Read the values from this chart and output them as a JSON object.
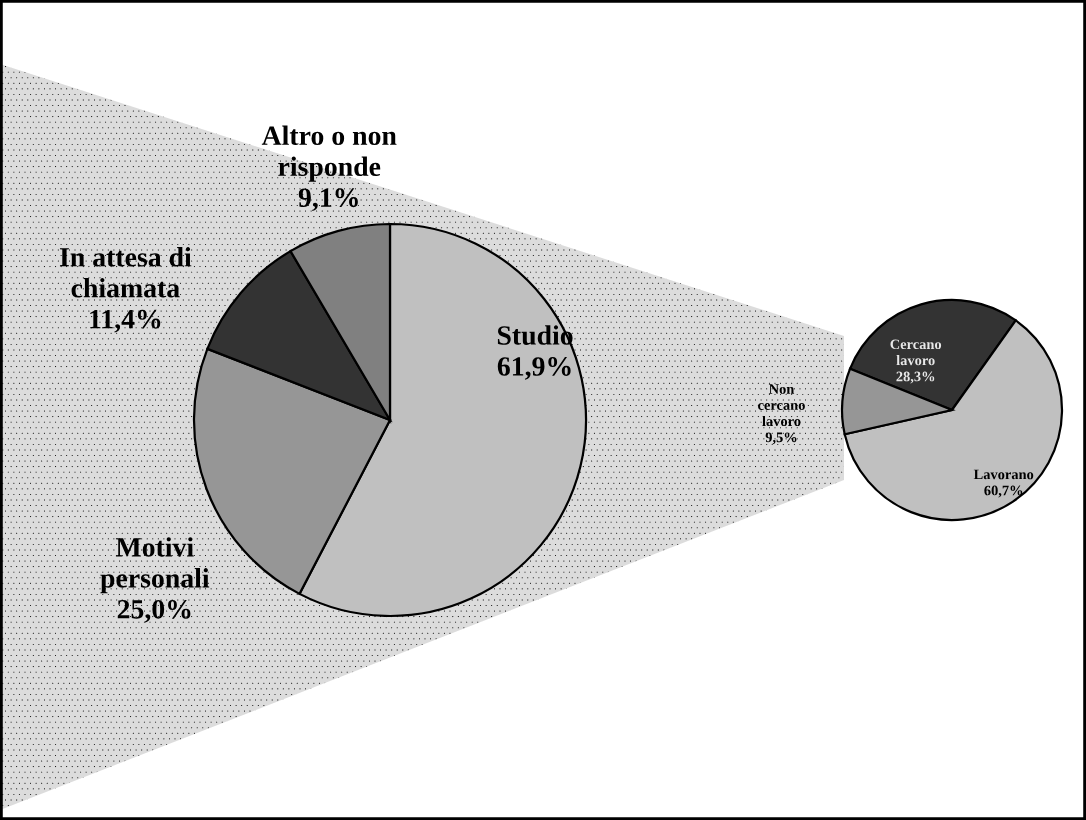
{
  "chart_data": [
    {
      "type": "pie",
      "categories": [
        "Studio",
        "Motivi personali",
        "In attesa di chiamata",
        "Altro o non risponde"
      ],
      "values": [
        61.9,
        25.0,
        11.4,
        9.1
      ],
      "value_labels": [
        "61,9%",
        "25,0%",
        "11,4%",
        "9,1%"
      ],
      "colors": [
        "#c0c0c0",
        "#969696",
        "#333333",
        "#808080"
      ]
    },
    {
      "type": "pie",
      "categories": [
        "Cercano lavoro",
        "Lavorano",
        "Non cercano lavoro"
      ],
      "values": [
        28.3,
        60.7,
        9.5
      ],
      "value_labels": [
        "28,3%",
        "60,7%",
        "9,5%"
      ],
      "colors": [
        "#333333",
        "#c0c0c0",
        "#969696"
      ]
    }
  ]
}
